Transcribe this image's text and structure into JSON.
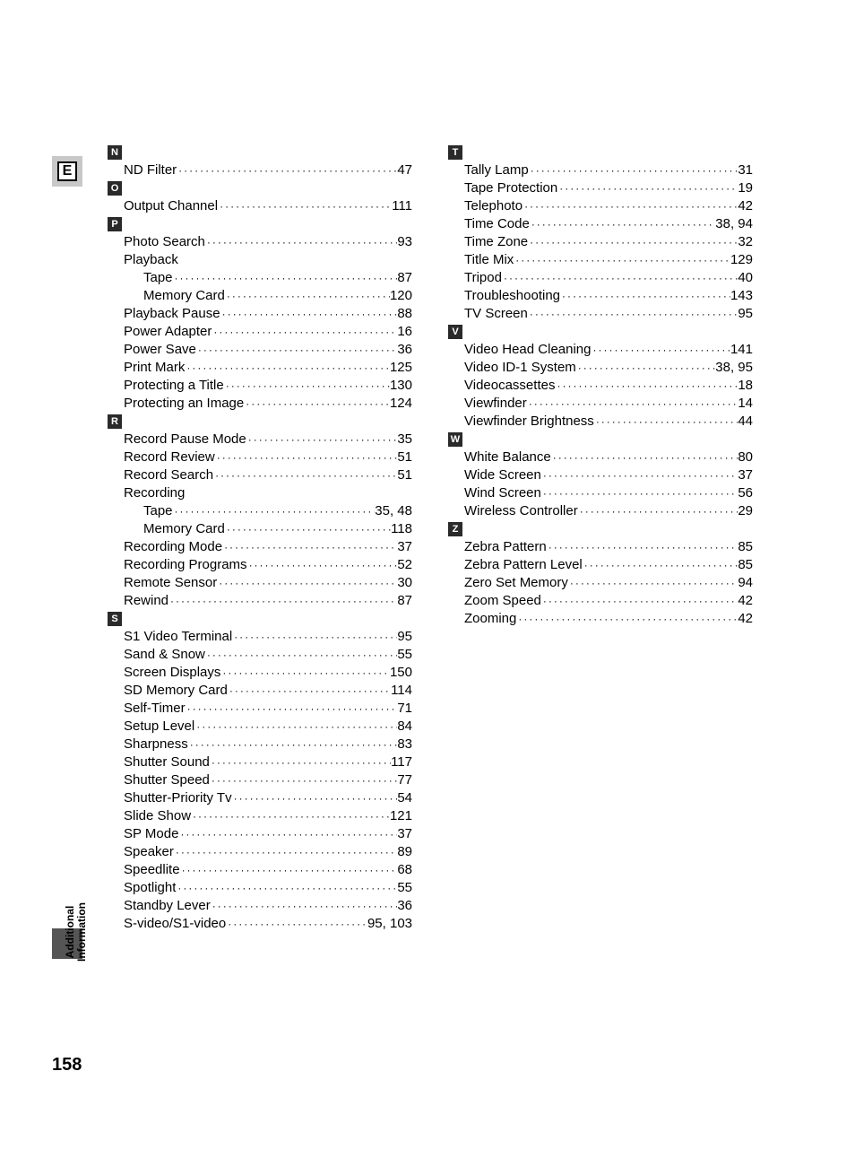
{
  "colors": {
    "background": "#ffffff",
    "text": "#000000",
    "letterbox_bg": "#2a2a2a",
    "letterbox_fg": "#ffffff",
    "tab_bg": "#c8c8c8",
    "side_block_bg": "#555555"
  },
  "typography": {
    "body_fontsize": 15,
    "letterbox_fontsize": 11,
    "pagenum_fontsize": 20,
    "sidelabel_fontsize": 12
  },
  "section_tab": "E",
  "side_label_line1": "Additional",
  "side_label_line2": "Information",
  "page_number": "158",
  "columns": [
    [
      {
        "type": "letter",
        "text": "N"
      },
      {
        "type": "entry",
        "term": "ND Filter",
        "page": "47",
        "indent": 1
      },
      {
        "type": "letter",
        "text": "O"
      },
      {
        "type": "entry",
        "term": "Output Channel",
        "page": "111",
        "indent": 1
      },
      {
        "type": "letter",
        "text": "P"
      },
      {
        "type": "entry",
        "term": "Photo Search",
        "page": "93",
        "indent": 1
      },
      {
        "type": "entry",
        "term": "Playback",
        "page": "",
        "indent": 1,
        "nodots": true
      },
      {
        "type": "entry",
        "term": "Tape",
        "page": "87",
        "indent": 2
      },
      {
        "type": "entry",
        "term": "Memory Card",
        "page": "120",
        "indent": 2
      },
      {
        "type": "entry",
        "term": "Playback Pause",
        "page": "88",
        "indent": 1
      },
      {
        "type": "entry",
        "term": "Power Adapter",
        "page": "16",
        "indent": 1
      },
      {
        "type": "entry",
        "term": "Power Save",
        "page": "36",
        "indent": 1
      },
      {
        "type": "entry",
        "term": "Print Mark",
        "page": "125",
        "indent": 1
      },
      {
        "type": "entry",
        "term": "Protecting a Title",
        "page": "130",
        "indent": 1
      },
      {
        "type": "entry",
        "term": "Protecting an Image",
        "page": "124",
        "indent": 1
      },
      {
        "type": "letter",
        "text": "R"
      },
      {
        "type": "entry",
        "term": "Record Pause Mode",
        "page": "35",
        "indent": 1
      },
      {
        "type": "entry",
        "term": "Record Review",
        "page": "51",
        "indent": 1
      },
      {
        "type": "entry",
        "term": "Record Search",
        "page": "51",
        "indent": 1
      },
      {
        "type": "entry",
        "term": "Recording",
        "page": "",
        "indent": 1,
        "nodots": true
      },
      {
        "type": "entry",
        "term": "Tape",
        "page": "35, 48",
        "indent": 2
      },
      {
        "type": "entry",
        "term": "Memory Card",
        "page": "118",
        "indent": 2
      },
      {
        "type": "entry",
        "term": "Recording Mode",
        "page": "37",
        "indent": 1
      },
      {
        "type": "entry",
        "term": "Recording Programs",
        "page": "52",
        "indent": 1
      },
      {
        "type": "entry",
        "term": "Remote Sensor",
        "page": "30",
        "indent": 1
      },
      {
        "type": "entry",
        "term": "Rewind",
        "page": "87",
        "indent": 1
      },
      {
        "type": "letter",
        "text": "S"
      },
      {
        "type": "entry",
        "term": "S1 Video Terminal",
        "page": "95",
        "indent": 1
      },
      {
        "type": "entry",
        "term": "Sand & Snow",
        "page": "55",
        "indent": 1
      },
      {
        "type": "entry",
        "term": "Screen Displays",
        "page": "150",
        "indent": 1
      },
      {
        "type": "entry",
        "term": "SD Memory Card",
        "page": "114",
        "indent": 1
      },
      {
        "type": "entry",
        "term": "Self-Timer",
        "page": "71",
        "indent": 1
      },
      {
        "type": "entry",
        "term": "Setup Level",
        "page": "84",
        "indent": 1
      },
      {
        "type": "entry",
        "term": "Sharpness",
        "page": "83",
        "indent": 1
      },
      {
        "type": "entry",
        "term": "Shutter Sound",
        "page": "117",
        "indent": 1
      },
      {
        "type": "entry",
        "term": "Shutter Speed",
        "page": "77",
        "indent": 1
      },
      {
        "type": "entry",
        "term": "Shutter-Priority Tv",
        "page": "54",
        "indent": 1
      },
      {
        "type": "entry",
        "term": "Slide Show",
        "page": "121",
        "indent": 1
      },
      {
        "type": "entry",
        "term": "SP Mode",
        "page": "37",
        "indent": 1
      },
      {
        "type": "entry",
        "term": "Speaker",
        "page": "89",
        "indent": 1
      },
      {
        "type": "entry",
        "term": "Speedlite",
        "page": "68",
        "indent": 1
      },
      {
        "type": "entry",
        "term": "Spotlight",
        "page": "55",
        "indent": 1
      },
      {
        "type": "entry",
        "term": "Standby Lever",
        "page": "36",
        "indent": 1
      },
      {
        "type": "entry",
        "term": "S-video/S1-video",
        "page": "95, 103",
        "indent": 1
      }
    ],
    [
      {
        "type": "letter",
        "text": "T"
      },
      {
        "type": "entry",
        "term": "Tally Lamp",
        "page": "31",
        "indent": 1
      },
      {
        "type": "entry",
        "term": "Tape Protection",
        "page": "19",
        "indent": 1
      },
      {
        "type": "entry",
        "term": "Telephoto",
        "page": "42",
        "indent": 1
      },
      {
        "type": "entry",
        "term": "Time Code",
        "page": "38, 94",
        "indent": 1
      },
      {
        "type": "entry",
        "term": "Time Zone",
        "page": "32",
        "indent": 1
      },
      {
        "type": "entry",
        "term": "Title Mix",
        "page": "129",
        "indent": 1
      },
      {
        "type": "entry",
        "term": "Tripod",
        "page": "40",
        "indent": 1
      },
      {
        "type": "entry",
        "term": "Troubleshooting",
        "page": "143",
        "indent": 1
      },
      {
        "type": "entry",
        "term": "TV Screen",
        "page": "95",
        "indent": 1
      },
      {
        "type": "letter",
        "text": "V"
      },
      {
        "type": "entry",
        "term": "Video Head Cleaning",
        "page": "141",
        "indent": 1
      },
      {
        "type": "entry",
        "term": "Video ID-1 System",
        "page": "38, 95",
        "indent": 1
      },
      {
        "type": "entry",
        "term": "Videocassettes",
        "page": "18",
        "indent": 1
      },
      {
        "type": "entry",
        "term": "Viewfinder",
        "page": "14",
        "indent": 1
      },
      {
        "type": "entry",
        "term": "Viewfinder Brightness",
        "page": "44",
        "indent": 1
      },
      {
        "type": "letter",
        "text": "W"
      },
      {
        "type": "entry",
        "term": "White Balance",
        "page": "80",
        "indent": 1
      },
      {
        "type": "entry",
        "term": "Wide Screen",
        "page": "37",
        "indent": 1
      },
      {
        "type": "entry",
        "term": "Wind Screen",
        "page": "56",
        "indent": 1
      },
      {
        "type": "entry",
        "term": "Wireless Controller",
        "page": "29",
        "indent": 1
      },
      {
        "type": "letter",
        "text": "Z"
      },
      {
        "type": "entry",
        "term": "Zebra Pattern",
        "page": "85",
        "indent": 1
      },
      {
        "type": "entry",
        "term": "Zebra Pattern Level",
        "page": "85",
        "indent": 1
      },
      {
        "type": "entry",
        "term": "Zero Set Memory",
        "page": "94",
        "indent": 1
      },
      {
        "type": "entry",
        "term": "Zoom Speed",
        "page": "42",
        "indent": 1
      },
      {
        "type": "entry",
        "term": "Zooming",
        "page": "42",
        "indent": 1
      }
    ]
  ]
}
